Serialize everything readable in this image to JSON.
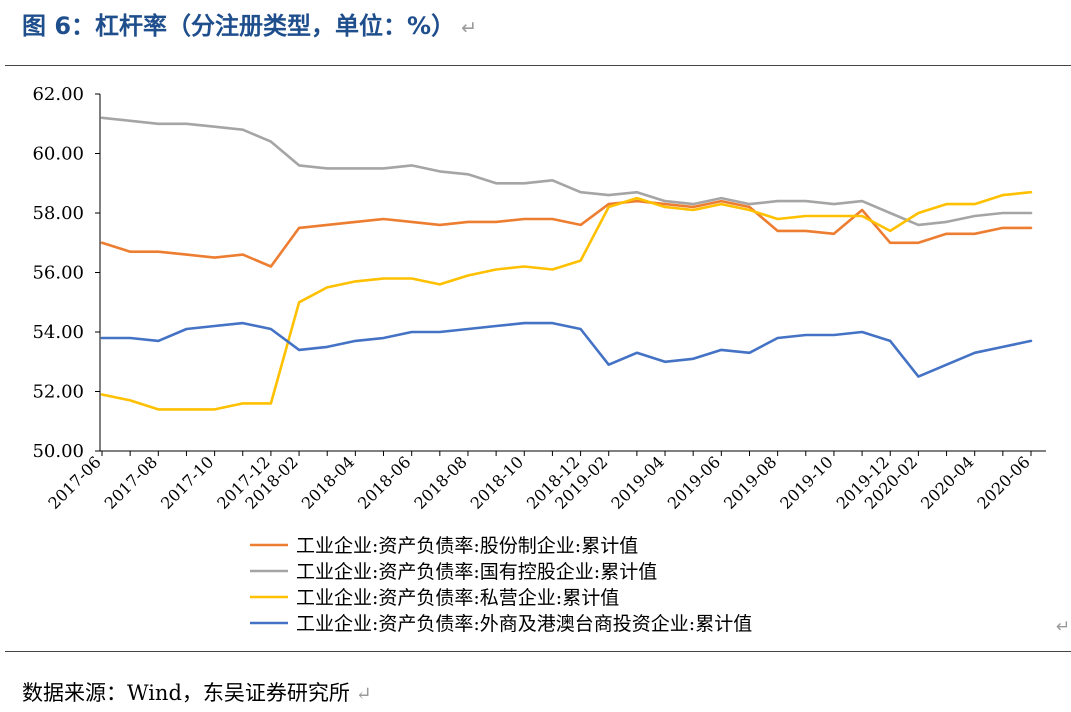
{
  "figure": {
    "title": "图 6：杠杆率（分注册类型，单位：%）",
    "return_mark": "↵"
  },
  "source": {
    "text": "数据来源：Wind，东吴证券研究所"
  },
  "colors": {
    "title": "#1f4e8c",
    "axis": "#000000",
    "series": [
      "#ed7d31",
      "#a5a5a5",
      "#ffc000",
      "#4472c4"
    ]
  },
  "chart_data": {
    "type": "line",
    "title": "",
    "xlabel": "",
    "ylabel": "",
    "ylim": [
      50,
      62
    ],
    "yticks": [
      "50.00",
      "52.00",
      "54.00",
      "56.00",
      "58.00",
      "60.00",
      "62.00"
    ],
    "grid": false,
    "legend_position": "bottom",
    "x": [
      "2017-06",
      "2017-07",
      "2017-08",
      "2017-09",
      "2017-10",
      "2017-11",
      "2017-12",
      "2018-02",
      "2018-03",
      "2018-04",
      "2018-05",
      "2018-06",
      "2018-07",
      "2018-08",
      "2018-09",
      "2018-10",
      "2018-11",
      "2018-12",
      "2019-02",
      "2019-03",
      "2019-04",
      "2019-05",
      "2019-06",
      "2019-07",
      "2019-08",
      "2019-09",
      "2019-10",
      "2019-11",
      "2019-12",
      "2020-02",
      "2020-03",
      "2020-04",
      "2020-05",
      "2020-06"
    ],
    "x_tick_labels": [
      "2017-06",
      "2017-08",
      "2017-10",
      "2017-12",
      "2018-02",
      "2018-04",
      "2018-06",
      "2018-08",
      "2018-10",
      "2018-12",
      "2019-02",
      "2019-04",
      "2019-06",
      "2019-08",
      "2019-10",
      "2019-12",
      "2020-02",
      "2020-04",
      "2020-06"
    ],
    "series": [
      {
        "name": "工业企业:资产负债率:股份制企业:累计值",
        "color": "#ed7d31",
        "values": [
          57.0,
          56.7,
          56.7,
          56.6,
          56.5,
          56.6,
          56.2,
          57.5,
          57.6,
          57.7,
          57.8,
          57.7,
          57.6,
          57.7,
          57.7,
          57.8,
          57.8,
          57.6,
          58.3,
          58.4,
          58.3,
          58.2,
          58.4,
          58.2,
          57.4,
          57.4,
          57.3,
          58.1,
          57.0,
          57.0,
          57.3,
          57.3,
          57.5,
          57.5
        ]
      },
      {
        "name": "工业企业:资产负债率:国有控股企业:累计值",
        "color": "#a5a5a5",
        "values": [
          61.2,
          61.1,
          61.0,
          61.0,
          60.9,
          60.8,
          60.4,
          59.6,
          59.5,
          59.5,
          59.5,
          59.6,
          59.4,
          59.3,
          59.0,
          59.0,
          59.1,
          58.7,
          58.6,
          58.7,
          58.4,
          58.3,
          58.5,
          58.3,
          58.4,
          58.4,
          58.3,
          58.4,
          58.0,
          57.6,
          57.7,
          57.9,
          58.0,
          58.0
        ]
      },
      {
        "name": "工业企业:资产负债率:私营企业:累计值",
        "color": "#ffc000",
        "values": [
          51.9,
          51.7,
          51.4,
          51.4,
          51.4,
          51.6,
          51.6,
          55.0,
          55.5,
          55.7,
          55.8,
          55.8,
          55.6,
          55.9,
          56.1,
          56.2,
          56.1,
          56.4,
          58.2,
          58.5,
          58.2,
          58.1,
          58.3,
          58.1,
          57.8,
          57.9,
          57.9,
          57.9,
          57.4,
          58.0,
          58.3,
          58.3,
          58.6,
          58.7
        ]
      },
      {
        "name": "工业企业:资产负债率:外商及港澳台商投资企业:累计值",
        "color": "#4472c4",
        "values": [
          53.8,
          53.8,
          53.7,
          54.1,
          54.2,
          54.3,
          54.1,
          53.4,
          53.5,
          53.7,
          53.8,
          54.0,
          54.0,
          54.1,
          54.2,
          54.3,
          54.3,
          54.1,
          52.9,
          53.3,
          53.0,
          53.1,
          53.4,
          53.3,
          53.8,
          53.9,
          53.9,
          54.0,
          53.7,
          52.5,
          52.9,
          53.3,
          53.5,
          53.7
        ]
      }
    ]
  }
}
